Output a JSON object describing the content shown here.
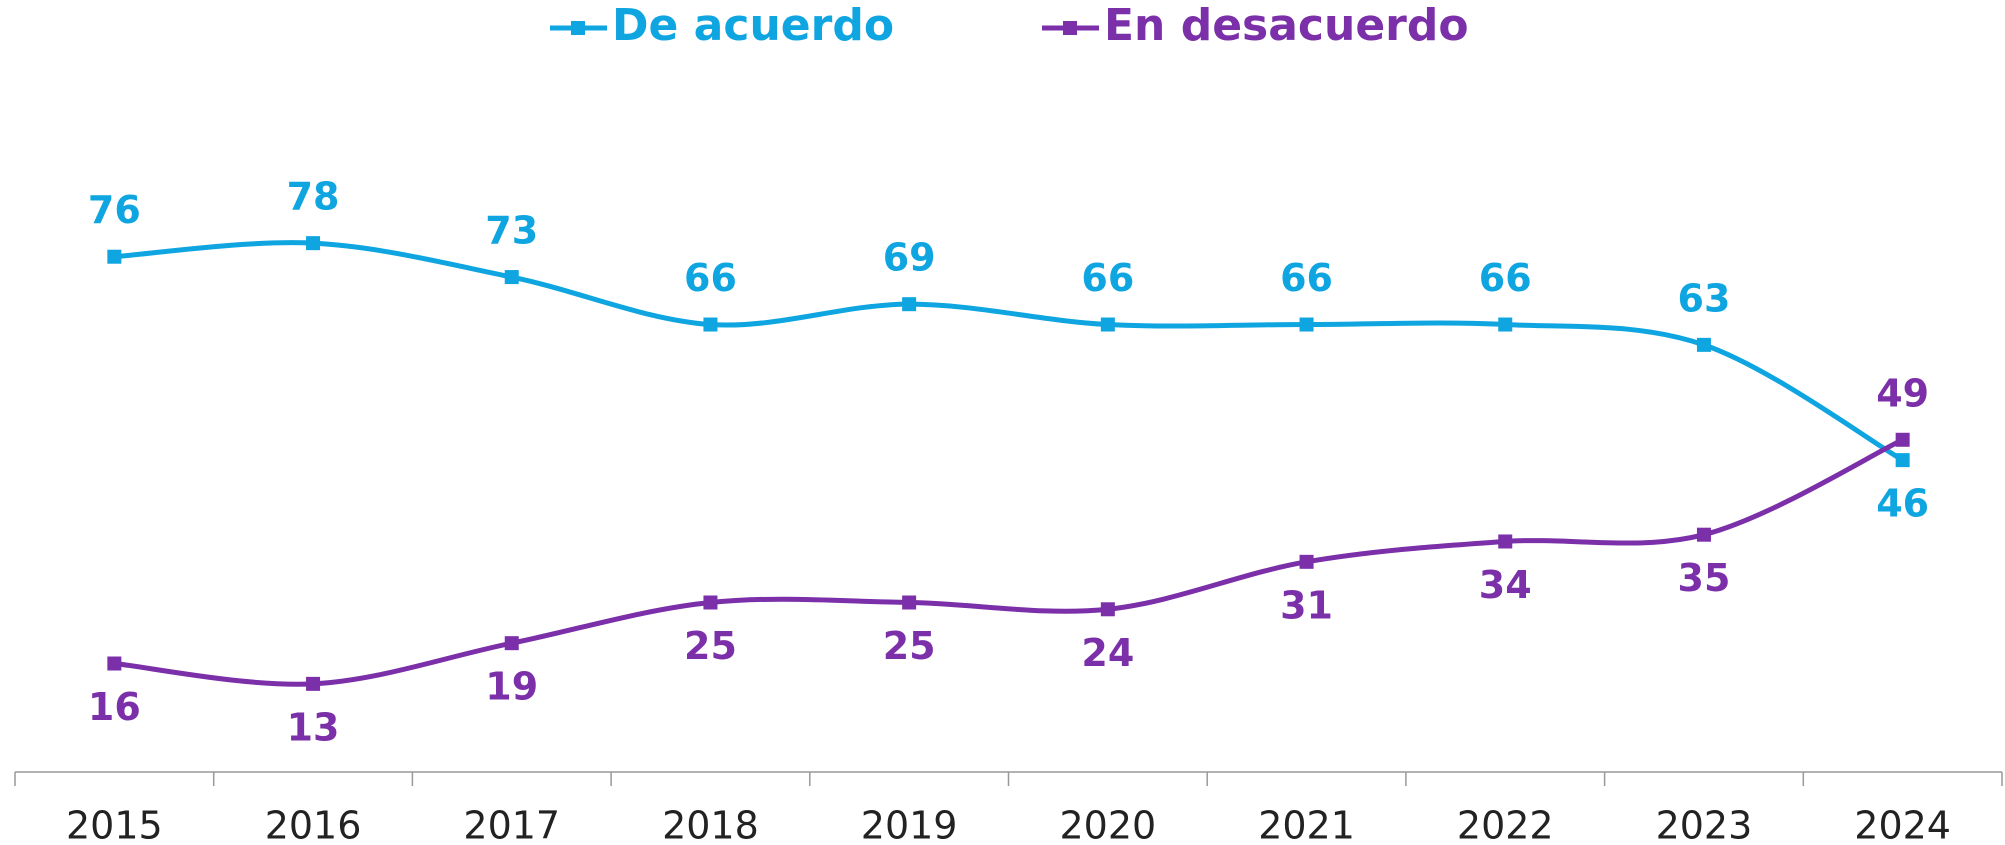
{
  "chart_data": {
    "type": "line",
    "categories": [
      "2015",
      "2016",
      "2017",
      "2018",
      "2019",
      "2020",
      "2021",
      "2022",
      "2023",
      "2024"
    ],
    "series": [
      {
        "name": "De acuerdo",
        "color": "#0ea5e0",
        "values": [
          76,
          78,
          73,
          66,
          69,
          66,
          66,
          66,
          63,
          46
        ]
      },
      {
        "name": "En desacuerdo",
        "color": "#7b2fa8",
        "values": [
          16,
          13,
          19,
          25,
          25,
          24,
          31,
          34,
          35,
          49
        ]
      }
    ],
    "ylim": [
      0,
      100
    ],
    "legend": "top"
  }
}
